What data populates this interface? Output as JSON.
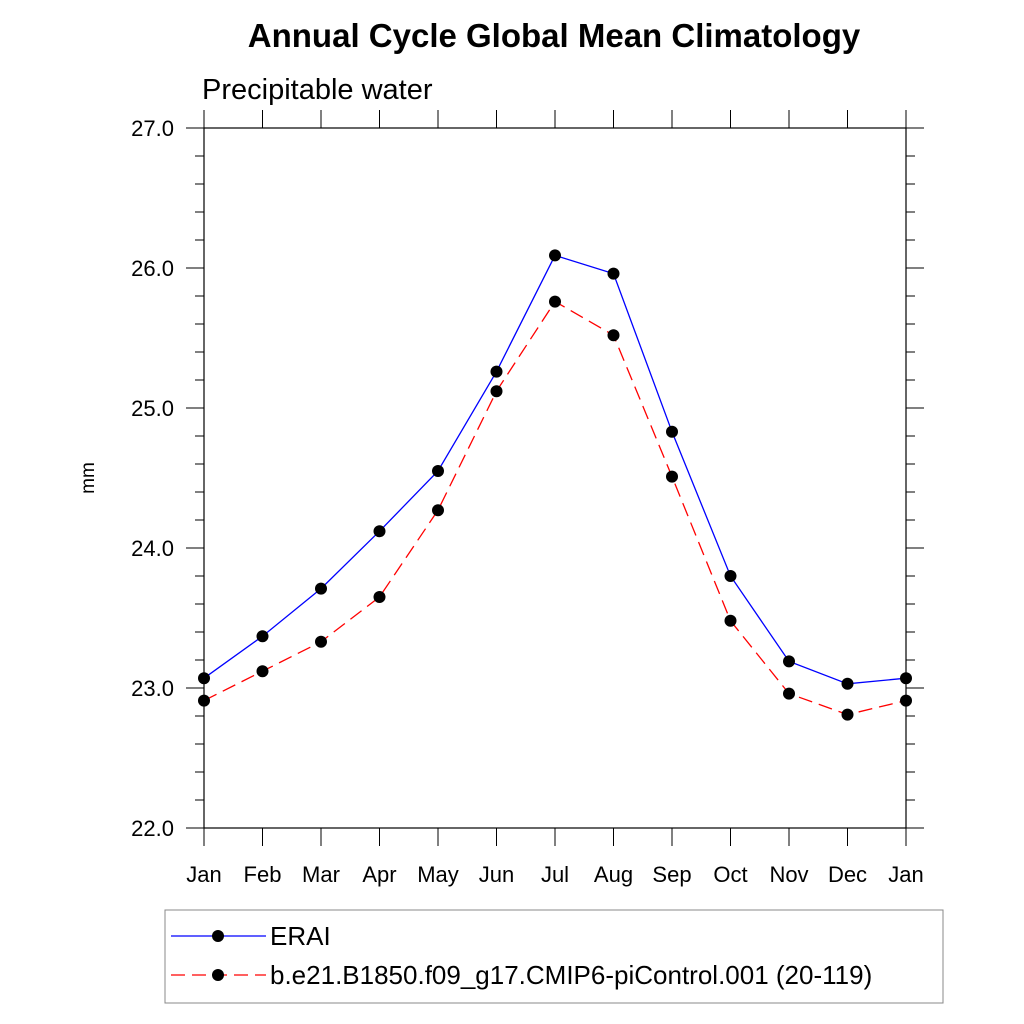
{
  "chart_data": {
    "type": "line",
    "title": "Annual Cycle Global Mean Climatology",
    "subtitle": "Precipitable water",
    "xlabel": "",
    "ylabel": "mm",
    "categories": [
      "Jan",
      "Feb",
      "Mar",
      "Apr",
      "May",
      "Jun",
      "Jul",
      "Aug",
      "Sep",
      "Oct",
      "Nov",
      "Dec",
      "Jan"
    ],
    "ylim": [
      22.0,
      27.0
    ],
    "yticks": [
      "22.0",
      "23.0",
      "24.0",
      "25.0",
      "26.0",
      "27.0"
    ],
    "series": [
      {
        "name": "ERAI",
        "color": "#0000ff",
        "dash": "solid",
        "values": [
          23.07,
          23.37,
          23.71,
          24.12,
          24.55,
          25.26,
          26.09,
          25.96,
          24.83,
          23.8,
          23.19,
          23.03,
          23.07
        ]
      },
      {
        "name": "b.e21.B1850.f09_g17.CMIP6-piControl.001 (20-119)",
        "color": "#ff0000",
        "dash": "dashed",
        "values": [
          22.91,
          23.12,
          23.33,
          23.65,
          24.27,
          25.12,
          25.76,
          25.52,
          24.51,
          23.48,
          22.96,
          22.81,
          22.91
        ]
      }
    ],
    "legend_position": "bottom",
    "grid": false
  }
}
